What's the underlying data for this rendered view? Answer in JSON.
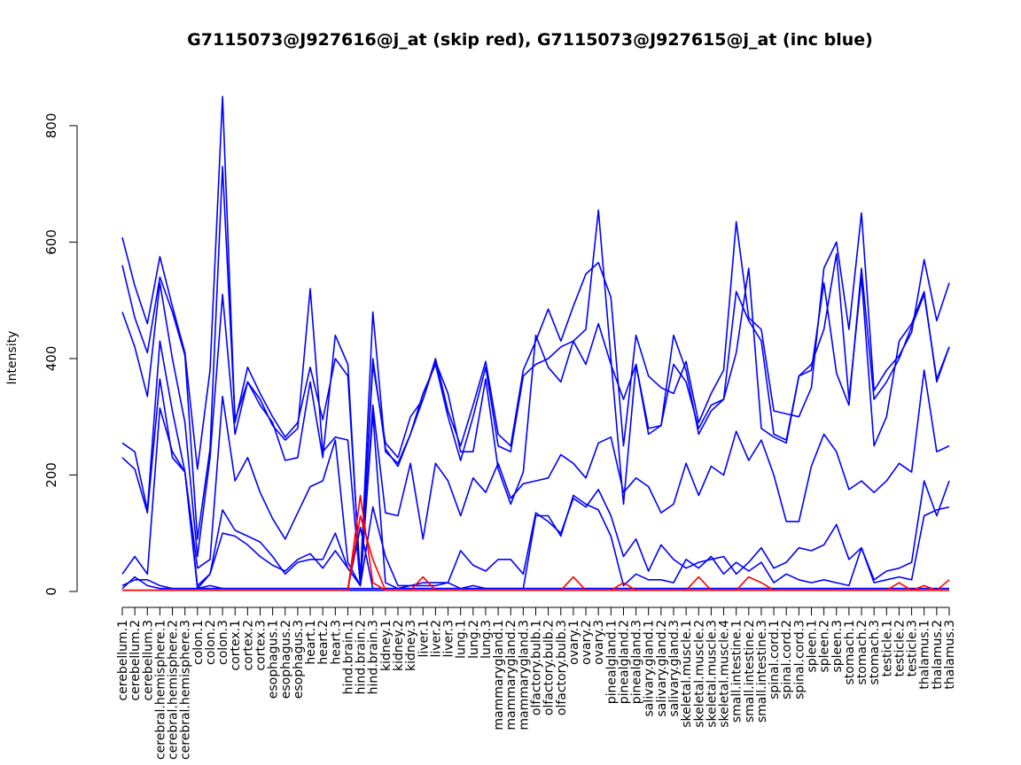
{
  "chart_data": {
    "type": "line",
    "title": "G7115073@J927616@j_at (skip red), G7115073@J927615@j_at (inc blue)",
    "xlabel": "",
    "ylabel": "Intensity",
    "ylim": [
      0,
      850
    ],
    "yticks": [
      0,
      200,
      400,
      600,
      800
    ],
    "categories": [
      "cerebellum.1",
      "cerebellum.2",
      "cerebellum.3",
      "cerebral.hemisphere.1",
      "cerebral.hemisphere.2",
      "cerebral.hemisphere.3",
      "colon.1",
      "colon.2",
      "colon.3",
      "cortex.1",
      "cortex.2",
      "cortex.3",
      "esophagus.1",
      "esophagus.2",
      "esophagus.3",
      "heart.1",
      "heart.2",
      "heart.3",
      "hind.brain.1",
      "hind.brain.2",
      "hind.brain.3",
      "kidney.1",
      "kidney.2",
      "kidney.3",
      "liver.1",
      "liver.2",
      "liver.3",
      "lung.1",
      "lung.2",
      "lung.3",
      "mammarygland.1",
      "mammarygland.2",
      "mammarygland.3",
      "olfactory.bulb.1",
      "olfactory.bulb.2",
      "olfactory.bulb.3",
      "ovary.1",
      "ovary.2",
      "ovary.3",
      "pinealgland.1",
      "pinealgland.2",
      "pinealgland.3",
      "salivary.gland.1",
      "salivary.gland.2",
      "salivary.gland.3",
      "skeletal.muscle.1",
      "skeletal.muscle.2",
      "skeletal.muscle.3",
      "skeletal.muscle.4",
      "small.intestine.1",
      "small.intestine.2",
      "small.intestine.3",
      "spinal.cord.1",
      "spinal.cord.2",
      "spinal.cord.3",
      "spleen.1",
      "spleen.2",
      "spleen.3",
      "stomach.1",
      "stomach.2",
      "stomach.3",
      "testicle.1",
      "testicle.2",
      "testicle.3",
      "thalamus.1",
      "thalamus.2",
      "thalamus.3"
    ],
    "series": [
      {
        "color": "#0000ff",
        "values": [
          608,
          525,
          460,
          575,
          490,
          410,
          210,
          380,
          850,
          290,
          385,
          340,
          300,
          265,
          290,
          385,
          295,
          400,
          370,
          20,
          480,
          240,
          220,
          270,
          330,
          400,
          310,
          250,
          320,
          395,
          270,
          250,
          380,
          430,
          485,
          430,
          490,
          545,
          565,
          505,
          250,
          440,
          370,
          350,
          340,
          395,
          290,
          340,
          380,
          635,
          470,
          450,
          310,
          305,
          300,
          350,
          555,
          600,
          450,
          650,
          345,
          380,
          405,
          445,
          570,
          465,
          530
        ]
      },
      {
        "color": "#0000ff",
        "values": [
          560,
          470,
          410,
          540,
          480,
          405,
          90,
          245,
          730,
          295,
          360,
          330,
          285,
          260,
          280,
          520,
          240,
          265,
          260,
          10,
          400,
          245,
          215,
          270,
          340,
          390,
          300,
          225,
          300,
          385,
          250,
          240,
          370,
          390,
          400,
          420,
          430,
          450,
          655,
          400,
          150,
          390,
          280,
          285,
          440,
          380,
          270,
          310,
          330,
          515,
          465,
          430,
          270,
          260,
          370,
          380,
          530,
          375,
          320,
          555,
          330,
          360,
          400,
          455,
          510,
          365,
          420
        ]
      },
      {
        "color": "#0000ff",
        "values": [
          480,
          420,
          335,
          530,
          400,
          290,
          60,
          230,
          510,
          270,
          360,
          320,
          290,
          225,
          230,
          360,
          230,
          440,
          390,
          10,
          390,
          255,
          230,
          300,
          330,
          395,
          340,
          240,
          240,
          365,
          210,
          150,
          205,
          440,
          385,
          360,
          430,
          390,
          460,
          390,
          330,
          390,
          270,
          285,
          390,
          360,
          280,
          320,
          330,
          410,
          555,
          280,
          265,
          255,
          370,
          390,
          450,
          580,
          330,
          540,
          250,
          300,
          430,
          460,
          515,
          360,
          420
        ]
      },
      {
        "color": "#0000ff",
        "values": [
          255,
          240,
          140,
          430,
          310,
          205,
          40,
          55,
          335,
          190,
          230,
          170,
          125,
          90,
          135,
          180,
          190,
          260,
          50,
          10,
          320,
          135,
          130,
          220,
          90,
          220,
          190,
          130,
          195,
          170,
          220,
          160,
          185,
          190,
          195,
          235,
          220,
          195,
          255,
          265,
          170,
          195,
          180,
          135,
          150,
          220,
          165,
          215,
          200,
          275,
          225,
          260,
          200,
          120,
          120,
          215,
          270,
          240,
          175,
          190,
          170,
          190,
          220,
          205,
          380,
          240,
          250
        ]
      },
      {
        "color": "#0000ff",
        "values": [
          230,
          210,
          135,
          365,
          230,
          205,
          10,
          30,
          140,
          105,
          95,
          85,
          60,
          30,
          50,
          55,
          55,
          100,
          40,
          10,
          145,
          60,
          10,
          10,
          15,
          15,
          15,
          70,
          45,
          35,
          55,
          55,
          30,
          135,
          120,
          100,
          160,
          145,
          175,
          130,
          60,
          90,
          35,
          80,
          55,
          40,
          50,
          55,
          60,
          30,
          50,
          75,
          40,
          50,
          75,
          70,
          80,
          115,
          55,
          75,
          20,
          35,
          40,
          50,
          190,
          130,
          190
        ]
      },
      {
        "color": "#0000ff",
        "values": [
          30,
          60,
          30,
          315,
          240,
          205,
          5,
          30,
          100,
          95,
          80,
          60,
          45,
          35,
          55,
          65,
          40,
          70,
          40,
          10,
          305,
          15,
          5,
          10,
          10,
          10,
          15,
          5,
          10,
          5,
          5,
          5,
          5,
          130,
          130,
          95,
          165,
          150,
          140,
          95,
          10,
          30,
          20,
          20,
          15,
          55,
          40,
          60,
          30,
          50,
          35,
          50,
          15,
          30,
          20,
          15,
          20,
          15,
          10,
          75,
          15,
          20,
          25,
          20,
          130,
          140,
          145
        ]
      },
      {
        "color": "#0000ff",
        "values": [
          10,
          20,
          20,
          10,
          5,
          5,
          5,
          10,
          5,
          5,
          5,
          5,
          5,
          5,
          5,
          5,
          5,
          5,
          5,
          110,
          5,
          5,
          5,
          5,
          5,
          5,
          5,
          5,
          5,
          5,
          5,
          5,
          5,
          5,
          5,
          5,
          5,
          5,
          5,
          5,
          5,
          5,
          5,
          5,
          5,
          5,
          5,
          5,
          5,
          5,
          5,
          5,
          5,
          5,
          5,
          5,
          5,
          5,
          5,
          5,
          5,
          5,
          5,
          5,
          5,
          5,
          5
        ]
      },
      {
        "color": "#0000ff",
        "values": [
          5,
          25,
          10,
          5,
          5,
          5,
          5,
          5,
          5,
          5,
          5,
          5,
          5,
          5,
          5,
          5,
          5,
          5,
          5,
          5,
          5,
          5,
          5,
          5,
          5,
          5,
          5,
          5,
          5,
          5,
          5,
          5,
          5,
          5,
          5,
          5,
          5,
          5,
          5,
          5,
          5,
          5,
          5,
          5,
          5,
          5,
          5,
          5,
          5,
          5,
          5,
          5,
          5,
          5,
          5,
          5,
          5,
          5,
          5,
          5,
          5,
          5,
          5,
          5,
          5,
          5,
          5
        ]
      },
      {
        "color": "#0000ff",
        "values": [
          2,
          2,
          2,
          2,
          2,
          2,
          2,
          2,
          2,
          2,
          2,
          2,
          2,
          2,
          2,
          2,
          2,
          2,
          2,
          2,
          2,
          2,
          2,
          2,
          2,
          2,
          2,
          2,
          2,
          2,
          2,
          2,
          2,
          2,
          2,
          2,
          2,
          2,
          2,
          2,
          2,
          2,
          2,
          2,
          2,
          2,
          2,
          2,
          2,
          2,
          2,
          2,
          2,
          2,
          2,
          2,
          2,
          2,
          2,
          2,
          2,
          2,
          2,
          2,
          2,
          2,
          2
        ]
      },
      {
        "color": "#ff0000",
        "values": [
          2,
          2,
          2,
          2,
          2,
          2,
          2,
          2,
          2,
          2,
          2,
          2,
          2,
          2,
          2,
          2,
          2,
          2,
          2,
          165,
          15,
          2,
          2,
          2,
          25,
          2,
          2,
          2,
          2,
          2,
          2,
          2,
          2,
          2,
          2,
          2,
          25,
          2,
          2,
          2,
          15,
          2,
          2,
          2,
          2,
          2,
          25,
          2,
          2,
          2,
          25,
          15,
          2,
          2,
          2,
          2,
          2,
          2,
          2,
          2,
          2,
          2,
          15,
          2,
          2,
          2,
          20
        ]
      },
      {
        "color": "#ff0000",
        "values": [
          2,
          2,
          2,
          2,
          2,
          2,
          2,
          2,
          2,
          2,
          2,
          2,
          2,
          2,
          2,
          2,
          2,
          2,
          2,
          130,
          55,
          2,
          2,
          2,
          2,
          2,
          2,
          2,
          2,
          2,
          2,
          2,
          2,
          2,
          2,
          2,
          2,
          2,
          2,
          2,
          2,
          2,
          2,
          2,
          2,
          2,
          2,
          2,
          2,
          2,
          2,
          2,
          2,
          2,
          2,
          2,
          2,
          2,
          2,
          2,
          2,
          2,
          2,
          2,
          10,
          2,
          2
        ]
      }
    ]
  }
}
